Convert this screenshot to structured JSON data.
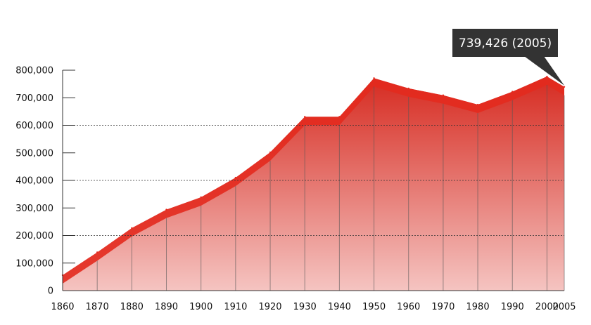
{
  "chart_data": {
    "type": "area",
    "title": "",
    "xlabel": "",
    "ylabel": "",
    "x": [
      1860,
      1870,
      1880,
      1890,
      1900,
      1910,
      1920,
      1930,
      1940,
      1950,
      1960,
      1970,
      1980,
      1990,
      2000,
      2005
    ],
    "values": [
      56000,
      139000,
      227000,
      294000,
      339000,
      410000,
      502000,
      631000,
      631000,
      771000,
      734000,
      709000,
      675000,
      722000,
      777000,
      739426
    ],
    "ylim": [
      0,
      800000
    ],
    "xlim": [
      1860,
      2005
    ],
    "y_ticks": [
      0,
      100000,
      200000,
      300000,
      400000,
      500000,
      600000,
      700000,
      800000
    ],
    "y_tick_labels": [
      "0",
      "100,000",
      "200,000",
      "300,000",
      "400,000",
      "500,000",
      "600,000",
      "700,000",
      "800,000"
    ],
    "x_tick_labels": [
      "1860",
      "1870",
      "1880",
      "1890",
      "1900",
      "1910",
      "1920",
      "1930",
      "1940",
      "1950",
      "1960",
      "1970",
      "1980",
      "1990",
      "2000",
      "2005"
    ],
    "dotted_gridlines": [
      200000,
      400000,
      600000
    ],
    "legend": "none",
    "annotation": {
      "text": "739,426 (2005)",
      "x": 2005,
      "y": 739426
    },
    "colors": {
      "area_top": "#d62a20",
      "area_bottom": "#f5c4c1",
      "band": "#e32a1e",
      "callout_bg": "#333333"
    }
  }
}
